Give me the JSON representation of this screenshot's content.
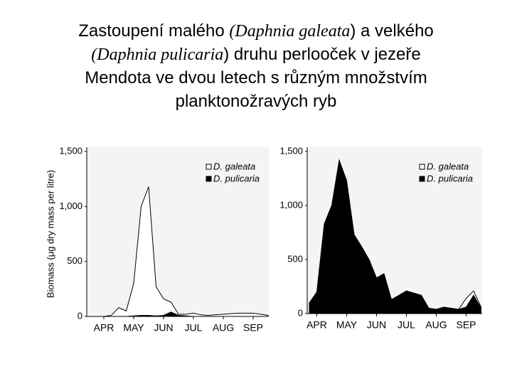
{
  "title": [
    [
      {
        "text": "Zastoupení malého ",
        "italic": false
      },
      {
        "text": "(Daphnia galeata",
        "italic": true
      },
      {
        "text": ") a velkého",
        "italic": false
      }
    ],
    [
      {
        "text": "(Daphnia pulicaria",
        "italic": true
      },
      {
        "text": ") druhu perlooček v jezeře",
        "italic": false
      }
    ],
    [
      {
        "text": "Mendota ve dvou letech s různým množstvím",
        "italic": false
      }
    ],
    [
      {
        "text": "planktonožravých ryb",
        "italic": false
      }
    ]
  ],
  "chart_data": [
    {
      "type": "area",
      "ylabel": "Biomass (μg dry mass per litre)",
      "categories": [
        null,
        null,
        "APR",
        null,
        null,
        null,
        "MAY",
        null,
        null,
        null,
        "JUN",
        null,
        null,
        null,
        "JUL",
        null,
        null,
        null,
        "AUG",
        null,
        null,
        null,
        "SEP",
        null,
        null
      ],
      "series": [
        {
          "name": "D. galeata",
          "color": "#ffffff",
          "values": [
            0,
            0,
            0,
            10,
            80,
            50,
            300,
            1000,
            1180,
            270,
            160,
            130,
            20,
            20,
            30,
            15,
            10,
            15,
            20,
            25,
            30,
            30,
            30,
            20,
            10
          ]
        },
        {
          "name": "D. pulicaria",
          "color": "#000000",
          "values": [
            0,
            0,
            0,
            0,
            0,
            0,
            5,
            10,
            10,
            5,
            10,
            40,
            10,
            5,
            0,
            0,
            0,
            0,
            0,
            0,
            0,
            0,
            0,
            0,
            0
          ]
        }
      ],
      "ylim": [
        0,
        1500
      ],
      "yticks": [
        0,
        500,
        {
          "value": 1000,
          "label": "1,000"
        },
        {
          "value": 1500,
          "label": "1,500"
        }
      ],
      "legend": "top-right"
    },
    {
      "type": "area",
      "categories": [
        null,
        "APR",
        null,
        null,
        null,
        "MAY",
        null,
        null,
        null,
        "JUN",
        null,
        null,
        null,
        "JUL",
        null,
        null,
        null,
        "AUG",
        null,
        null,
        null,
        "SEP",
        null,
        null
      ],
      "series": [
        {
          "name": "D. galeata",
          "color": "#ffffff",
          "values": [
            0,
            0,
            0,
            0,
            20,
            0,
            0,
            0,
            0,
            0,
            0,
            0,
            0,
            0,
            0,
            0,
            10,
            20,
            20,
            30,
            40,
            140,
            210,
            60
          ]
        },
        {
          "name": "D. pulicaria",
          "color": "#000000",
          "values": [
            100,
            200,
            830,
            1000,
            1420,
            1230,
            730,
            620,
            500,
            330,
            370,
            130,
            170,
            210,
            190,
            170,
            50,
            40,
            60,
            50,
            40,
            60,
            170,
            50
          ]
        }
      ],
      "ylim": [
        0,
        1500
      ],
      "yticks": [
        0,
        500,
        {
          "value": 1000,
          "label": "1,000"
        },
        {
          "value": 1500,
          "label": "1,500"
        }
      ],
      "legend": "top-right"
    }
  ]
}
